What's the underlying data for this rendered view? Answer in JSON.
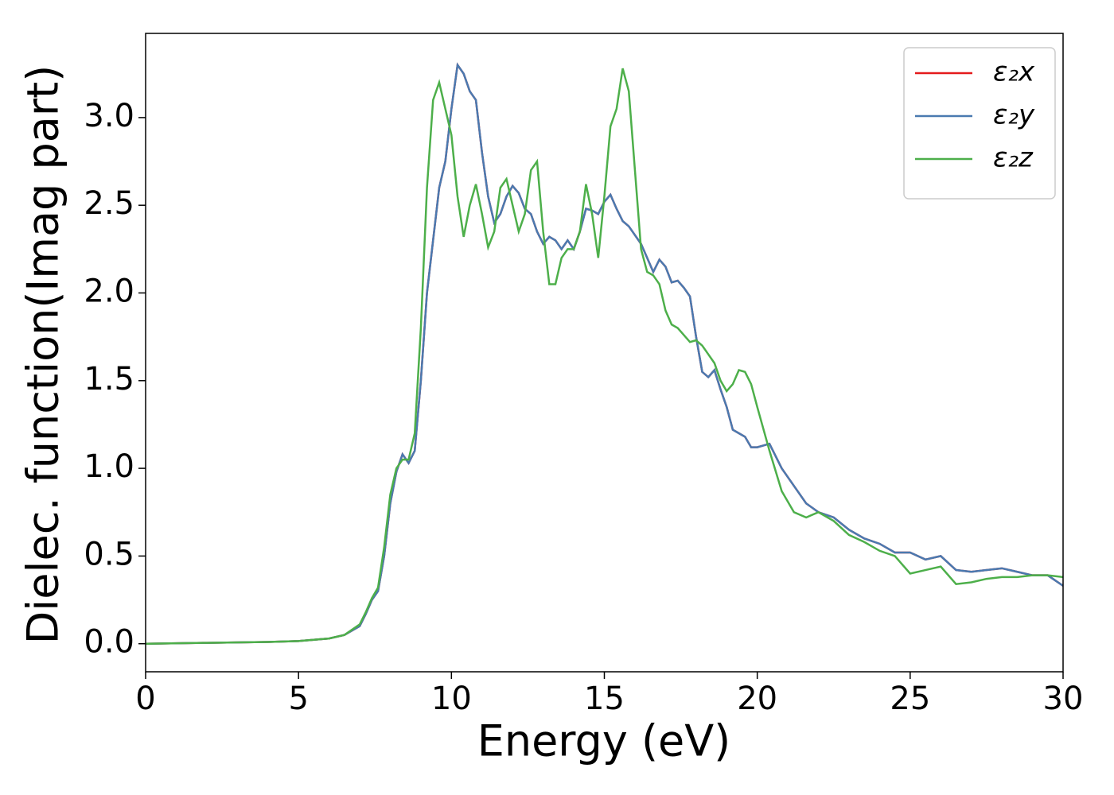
{
  "chart_data": {
    "type": "line",
    "xlabel": "Energy (eV)",
    "ylabel": "Dielec. function(Imag part)",
    "x": [
      0,
      2,
      4,
      5,
      6,
      6.5,
      7,
      7.2,
      7.4,
      7.6,
      7.8,
      8,
      8.2,
      8.4,
      8.6,
      8.8,
      9,
      9.2,
      9.4,
      9.6,
      9.8,
      10,
      10.2,
      10.4,
      10.6,
      10.8,
      11,
      11.2,
      11.4,
      11.6,
      11.8,
      12,
      12.2,
      12.4,
      12.6,
      12.8,
      13,
      13.2,
      13.4,
      13.6,
      13.8,
      14,
      14.2,
      14.4,
      14.6,
      14.8,
      15,
      15.2,
      15.4,
      15.6,
      15.8,
      16,
      16.2,
      16.4,
      16.6,
      16.8,
      17,
      17.2,
      17.4,
      17.6,
      17.8,
      18,
      18.2,
      18.4,
      18.6,
      18.8,
      19,
      19.2,
      19.4,
      19.6,
      19.8,
      20,
      20.4,
      20.8,
      21.2,
      21.6,
      22,
      22.5,
      23,
      23.5,
      24,
      24.5,
      25,
      25.5,
      26,
      26.5,
      27,
      27.5,
      28,
      28.5,
      29,
      29.5,
      30
    ],
    "series": [
      {
        "name": "ε₂x",
        "color": "#e41a1c",
        "values": [
          0,
          0.005,
          0.01,
          0.015,
          0.03,
          0.05,
          0.1,
          0.17,
          0.25,
          0.3,
          0.5,
          0.8,
          0.98,
          1.08,
          1.03,
          1.1,
          1.5,
          2.0,
          2.3,
          2.6,
          2.75,
          3.05,
          3.3,
          3.25,
          3.15,
          3.1,
          2.8,
          2.55,
          2.4,
          2.45,
          2.55,
          2.61,
          2.57,
          2.48,
          2.45,
          2.35,
          2.28,
          2.32,
          2.3,
          2.25,
          2.3,
          2.25,
          2.35,
          2.48,
          2.47,
          2.45,
          2.52,
          2.56,
          2.48,
          2.41,
          2.38,
          2.33,
          2.28,
          2.2,
          2.12,
          2.19,
          2.15,
          2.06,
          2.07,
          2.03,
          1.98,
          1.75,
          1.55,
          1.52,
          1.56,
          1.45,
          1.35,
          1.22,
          1.2,
          1.18,
          1.12,
          1.12,
          1.14,
          1.0,
          0.9,
          0.8,
          0.75,
          0.72,
          0.65,
          0.6,
          0.57,
          0.52,
          0.52,
          0.48,
          0.5,
          0.42,
          0.41,
          0.42,
          0.43,
          0.41,
          0.39,
          0.39,
          0.33
        ]
      },
      {
        "name": "ε₂y",
        "color": "#4a7ab0",
        "values": [
          0,
          0.005,
          0.01,
          0.015,
          0.03,
          0.05,
          0.1,
          0.17,
          0.25,
          0.3,
          0.5,
          0.8,
          0.98,
          1.08,
          1.03,
          1.1,
          1.5,
          2.0,
          2.3,
          2.6,
          2.75,
          3.05,
          3.3,
          3.25,
          3.15,
          3.1,
          2.8,
          2.55,
          2.4,
          2.45,
          2.55,
          2.61,
          2.57,
          2.48,
          2.45,
          2.35,
          2.28,
          2.32,
          2.3,
          2.25,
          2.3,
          2.25,
          2.35,
          2.48,
          2.47,
          2.45,
          2.52,
          2.56,
          2.48,
          2.41,
          2.38,
          2.33,
          2.28,
          2.2,
          2.12,
          2.19,
          2.15,
          2.06,
          2.07,
          2.03,
          1.98,
          1.75,
          1.55,
          1.52,
          1.56,
          1.45,
          1.35,
          1.22,
          1.2,
          1.18,
          1.12,
          1.12,
          1.14,
          1.0,
          0.9,
          0.8,
          0.75,
          0.72,
          0.65,
          0.6,
          0.57,
          0.52,
          0.52,
          0.48,
          0.5,
          0.42,
          0.41,
          0.42,
          0.43,
          0.41,
          0.39,
          0.39,
          0.33
        ]
      },
      {
        "name": "ε₂z",
        "color": "#4daf4a",
        "values": [
          0,
          0.005,
          0.01,
          0.015,
          0.03,
          0.05,
          0.11,
          0.18,
          0.26,
          0.32,
          0.55,
          0.85,
          1.0,
          1.05,
          1.05,
          1.2,
          1.8,
          2.6,
          3.1,
          3.2,
          3.05,
          2.9,
          2.55,
          2.32,
          2.5,
          2.62,
          2.45,
          2.26,
          2.35,
          2.6,
          2.65,
          2.5,
          2.35,
          2.45,
          2.7,
          2.75,
          2.35,
          2.05,
          2.05,
          2.2,
          2.25,
          2.25,
          2.35,
          2.62,
          2.45,
          2.2,
          2.55,
          2.95,
          3.05,
          3.28,
          3.15,
          2.7,
          2.25,
          2.12,
          2.1,
          2.05,
          1.9,
          1.82,
          1.8,
          1.76,
          1.72,
          1.73,
          1.7,
          1.65,
          1.6,
          1.5,
          1.44,
          1.48,
          1.56,
          1.55,
          1.48,
          1.35,
          1.1,
          0.87,
          0.75,
          0.72,
          0.75,
          0.7,
          0.62,
          0.58,
          0.53,
          0.5,
          0.4,
          0.42,
          0.44,
          0.34,
          0.35,
          0.37,
          0.38,
          0.38,
          0.39,
          0.39,
          0.38
        ]
      }
    ],
    "xlim": [
      0,
      30
    ],
    "ylim": [
      -0.16,
      3.48
    ],
    "xticks": [
      0,
      5,
      10,
      15,
      20,
      25,
      30
    ],
    "yticks": [
      {
        "value": 0,
        "label": "0.0"
      },
      0.5,
      {
        "value": 1,
        "label": "1.0"
      },
      1.5,
      {
        "value": 2,
        "label": "2.0"
      },
      2.5,
      {
        "value": 3,
        "label": "3.0"
      }
    ],
    "legend": "upper right"
  }
}
